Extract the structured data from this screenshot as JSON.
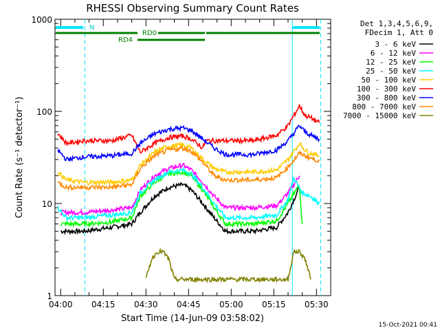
{
  "chart_data": {
    "type": "line",
    "title": "RHESSI Observing Summary Count Rates",
    "ylabel": "Count Rate (s⁻¹ detector⁻¹)",
    "xlabel": "Start Time (14-Jun-09 03:58:02)",
    "y_scale": "log",
    "ylim": [
      1,
      1000
    ],
    "y_ticks": [
      {
        "value": 1,
        "label": "1"
      },
      {
        "value": 10,
        "label": "10"
      },
      {
        "value": 100,
        "label": "100"
      },
      {
        "value": 1000,
        "label": "1000"
      }
    ],
    "x_ticks": [
      "04:00",
      "04:15",
      "04:30",
      "04:45",
      "05:00",
      "05:15",
      "05:30"
    ],
    "x_tick_minutes": [
      2,
      17,
      32,
      47,
      62,
      77,
      92
    ],
    "xlim_minutes": [
      0,
      97
    ],
    "legend_header": [
      "Det 1,3,4,5,6,9,",
      "FDecim 1, Att 0"
    ],
    "legend_position": "right",
    "footer_date": "15-Oct-2021 00:41",
    "annotations": {
      "night_marker": "N",
      "rd0": "RD0",
      "rd4": "RD4"
    },
    "vertical_markers_minutes": [
      {
        "t": 10.5,
        "style": "dashed"
      },
      {
        "t": 83.5,
        "style": "solid"
      },
      {
        "t": 93.5,
        "style": "dashed"
      }
    ],
    "series": [
      {
        "name": "3 - 6 keV",
        "color": "#000000",
        "points": [
          [
            2,
            5
          ],
          [
            10,
            5
          ],
          [
            20,
            5.5
          ],
          [
            27,
            6
          ],
          [
            30,
            8
          ],
          [
            35,
            12
          ],
          [
            40,
            15
          ],
          [
            45,
            16
          ],
          [
            48,
            14
          ],
          [
            52,
            10
          ],
          [
            56,
            7
          ],
          [
            60,
            5
          ],
          [
            70,
            5
          ],
          [
            78,
            5.5
          ],
          [
            82,
            8
          ],
          [
            86,
            15
          ]
        ]
      },
      {
        "name": "6 - 12 keV",
        "color": "#ff00ff",
        "points": [
          [
            2,
            8
          ],
          [
            10,
            8
          ],
          [
            20,
            8.5
          ],
          [
            27,
            9
          ],
          [
            30,
            14
          ],
          [
            35,
            20
          ],
          [
            40,
            24
          ],
          [
            45,
            26
          ],
          [
            48,
            23
          ],
          [
            52,
            17
          ],
          [
            56,
            12
          ],
          [
            60,
            9
          ],
          [
            70,
            9
          ],
          [
            78,
            9.5
          ],
          [
            82,
            13
          ],
          [
            86,
            20
          ]
        ]
      },
      {
        "name": "12 - 25 keV",
        "color": "#00ff00",
        "points": [
          [
            2,
            6
          ],
          [
            10,
            6
          ],
          [
            20,
            6.3
          ],
          [
            27,
            7
          ],
          [
            30,
            12
          ],
          [
            35,
            17
          ],
          [
            40,
            21
          ],
          [
            45,
            22
          ],
          [
            48,
            20
          ],
          [
            52,
            14
          ],
          [
            56,
            9
          ],
          [
            60,
            6
          ],
          [
            70,
            6
          ],
          [
            78,
            6.5
          ],
          [
            82,
            10
          ],
          [
            86,
            16
          ],
          [
            87,
            6
          ]
        ]
      },
      {
        "name": "25 - 50 keV",
        "color": "#00ffff",
        "points": [
          [
            1,
            9
          ],
          [
            4,
            7
          ],
          [
            10,
            7
          ],
          [
            20,
            7.5
          ],
          [
            27,
            8
          ],
          [
            30,
            13
          ],
          [
            35,
            18
          ],
          [
            40,
            22
          ],
          [
            45,
            23
          ],
          [
            48,
            21
          ],
          [
            52,
            15
          ],
          [
            56,
            10
          ],
          [
            60,
            7
          ],
          [
            70,
            7
          ],
          [
            78,
            7.5
          ],
          [
            82,
            11
          ],
          [
            84,
            19
          ],
          [
            87,
            13
          ],
          [
            90,
            12
          ],
          [
            93,
            10
          ]
        ]
      },
      {
        "name": "50 - 100 keV",
        "color": "#ffcc00",
        "points": [
          [
            1,
            22
          ],
          [
            4,
            18
          ],
          [
            10,
            17
          ],
          [
            20,
            17
          ],
          [
            27,
            18
          ],
          [
            30,
            26
          ],
          [
            35,
            36
          ],
          [
            40,
            42
          ],
          [
            45,
            43
          ],
          [
            48,
            40
          ],
          [
            52,
            30
          ],
          [
            56,
            24
          ],
          [
            60,
            22
          ],
          [
            70,
            22
          ],
          [
            78,
            23
          ],
          [
            82,
            30
          ],
          [
            86,
            45
          ],
          [
            88,
            38
          ],
          [
            90,
            35
          ],
          [
            93,
            33
          ]
        ]
      },
      {
        "name": "100 - 300 keV",
        "color": "#ff0000",
        "points": [
          [
            1,
            58
          ],
          [
            4,
            45
          ],
          [
            10,
            48
          ],
          [
            20,
            48
          ],
          [
            27,
            55
          ],
          [
            30,
            36
          ],
          [
            35,
            45
          ],
          [
            40,
            52
          ],
          [
            45,
            54
          ],
          [
            48,
            50
          ],
          [
            52,
            40
          ],
          [
            53,
            48
          ],
          [
            56,
            48
          ],
          [
            60,
            48
          ],
          [
            70,
            48
          ],
          [
            78,
            55
          ],
          [
            82,
            70
          ],
          [
            86,
            115
          ],
          [
            88,
            90
          ],
          [
            90,
            85
          ],
          [
            93,
            75
          ]
        ]
      },
      {
        "name": "300 - 800 keV",
        "color": "#0000ff",
        "points": [
          [
            1,
            38
          ],
          [
            4,
            30
          ],
          [
            10,
            32
          ],
          [
            20,
            33
          ],
          [
            27,
            35
          ],
          [
            30,
            45
          ],
          [
            35,
            57
          ],
          [
            40,
            64
          ],
          [
            45,
            66
          ],
          [
            48,
            62
          ],
          [
            52,
            50
          ],
          [
            56,
            40
          ],
          [
            60,
            34
          ],
          [
            70,
            34
          ],
          [
            78,
            38
          ],
          [
            82,
            48
          ],
          [
            86,
            70
          ],
          [
            88,
            60
          ],
          [
            90,
            55
          ],
          [
            93,
            50
          ]
        ]
      },
      {
        "name": "800 - 7000 keV",
        "color": "#ff8800",
        "points": [
          [
            1,
            17
          ],
          [
            4,
            15
          ],
          [
            10,
            15
          ],
          [
            20,
            15
          ],
          [
            27,
            16
          ],
          [
            30,
            24
          ],
          [
            35,
            33
          ],
          [
            40,
            38
          ],
          [
            45,
            40
          ],
          [
            48,
            37
          ],
          [
            52,
            28
          ],
          [
            56,
            20
          ],
          [
            60,
            18
          ],
          [
            70,
            18
          ],
          [
            78,
            19
          ],
          [
            82,
            25
          ],
          [
            86,
            35
          ],
          [
            88,
            33
          ],
          [
            90,
            31
          ],
          [
            93,
            29
          ]
        ]
      },
      {
        "name": "7000 - 15000 keV",
        "color": "#808000",
        "points": [
          [
            32,
            1.5
          ],
          [
            34,
            2.5
          ],
          [
            36,
            3
          ],
          [
            38,
            3
          ],
          [
            40,
            2.5
          ],
          [
            42,
            1.5
          ],
          [
            82,
            1.5
          ],
          [
            84,
            3
          ],
          [
            86,
            3
          ],
          [
            88,
            2.5
          ],
          [
            90,
            1.5
          ]
        ]
      }
    ]
  }
}
